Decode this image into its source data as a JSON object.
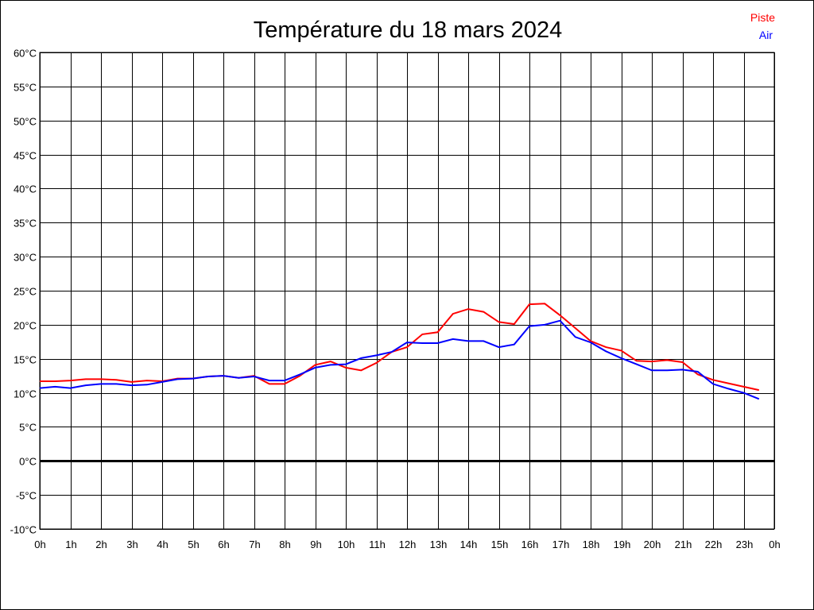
{
  "chart_data": {
    "type": "line",
    "title": "Température du 18 mars 2024",
    "xlabel": "",
    "ylabel": "",
    "xlim": [
      0,
      24
    ],
    "ylim": [
      -10,
      60
    ],
    "grid": true,
    "legend_position": "top-right",
    "x_tick_labels": [
      "0h",
      "1h",
      "2h",
      "3h",
      "4h",
      "5h",
      "6h",
      "7h",
      "8h",
      "9h",
      "10h",
      "11h",
      "12h",
      "13h",
      "14h",
      "15h",
      "16h",
      "17h",
      "18h",
      "19h",
      "20h",
      "21h",
      "22h",
      "23h",
      "0h"
    ],
    "y_ticks": [
      -10,
      -5,
      0,
      5,
      10,
      15,
      20,
      25,
      30,
      35,
      40,
      45,
      50,
      55,
      60
    ],
    "y_tick_suffix": "°C",
    "x": [
      0,
      0.5,
      1,
      1.5,
      2,
      2.5,
      3,
      3.5,
      4,
      4.5,
      5,
      5.5,
      6,
      6.5,
      7,
      7.5,
      8,
      8.5,
      9,
      9.5,
      10,
      10.5,
      11,
      11.5,
      12,
      12.5,
      13,
      13.5,
      14,
      14.5,
      15,
      15.5,
      16,
      16.5,
      17,
      17.5,
      18,
      18.5,
      19,
      19.5,
      20,
      20.5,
      21,
      21.5,
      22,
      22.5,
      23,
      23.5
    ],
    "series": [
      {
        "name": "Piste",
        "color": "#ff0000",
        "values": [
          11.7,
          11.7,
          11.8,
          12.0,
          12.0,
          11.9,
          11.6,
          11.8,
          11.7,
          12.1,
          12.1,
          12.4,
          12.5,
          12.2,
          12.5,
          11.3,
          11.3,
          12.5,
          14.1,
          14.6,
          13.7,
          13.3,
          14.4,
          16.0,
          16.7,
          18.6,
          18.9,
          21.6,
          22.3,
          21.9,
          20.4,
          20.1,
          23.0,
          23.1,
          21.4,
          19.5,
          17.6,
          16.7,
          16.2,
          14.7,
          14.6,
          14.8,
          14.5,
          12.7,
          11.9,
          11.4,
          10.9,
          10.4
        ]
      },
      {
        "name": "Air",
        "color": "#0000ff",
        "values": [
          10.7,
          10.9,
          10.7,
          11.1,
          11.3,
          11.3,
          11.1,
          11.2,
          11.6,
          12.0,
          12.1,
          12.4,
          12.5,
          12.2,
          12.4,
          11.8,
          11.8,
          12.7,
          13.7,
          14.1,
          14.2,
          15.1,
          15.5,
          16.0,
          17.4,
          17.3,
          17.3,
          17.9,
          17.6,
          17.6,
          16.7,
          17.1,
          19.8,
          20.0,
          20.6,
          18.2,
          17.4,
          16.1,
          15.1,
          14.2,
          13.3,
          13.3,
          13.4,
          13.1,
          11.3,
          10.6,
          10.0,
          9.1
        ]
      }
    ]
  }
}
